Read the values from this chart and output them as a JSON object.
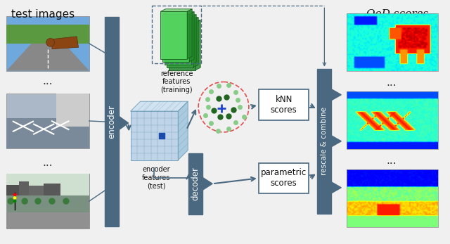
{
  "title_left": "test images",
  "title_right": "OoD scores",
  "encoder_label": "encoder",
  "decoder_label": "decoder",
  "ref_features_label": "reference\nfeatures\n(training)",
  "enc_features_label": "encoder\nfeatures\n(test)",
  "knn_label": "kNN\nscores",
  "parametric_label": "parametric\nscores",
  "rescale_label": "rescale & combine",
  "dots": "...",
  "bg_color": "#f0f0f0",
  "encoder_color": "#4a6880",
  "decoder_color": "#4a6880",
  "rescale_color": "#4a6880",
  "box_edge_color": "#4a6880",
  "arrow_color": "#4a6880",
  "cube_face_color": "#b8d0e8",
  "cube_edge_color": "#6a9ab8",
  "knn_circle_color": "#e05050",
  "knn_dot_light": "#88cc88",
  "knn_dot_dark": "#226622",
  "knn_cross_color": "#2244cc",
  "text_color_white": "#ffffff",
  "text_color_dark": "#111111"
}
